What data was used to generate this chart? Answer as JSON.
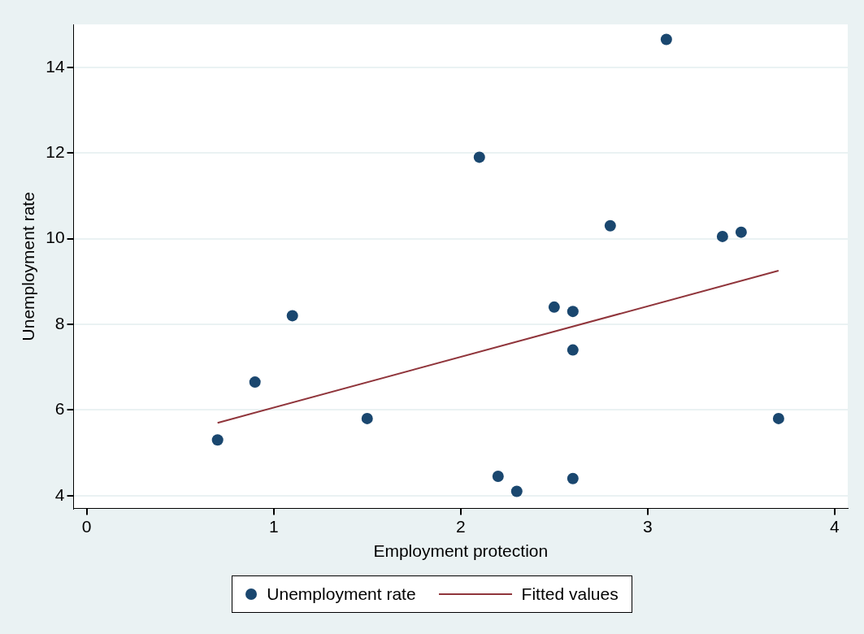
{
  "chart_data": {
    "type": "scatter",
    "xlabel": "Employment protection",
    "ylabel": "Unemployment rate",
    "xlim": [
      -0.07,
      4.07
    ],
    "ylim": [
      3.7,
      15
    ],
    "xticks": [
      0,
      1,
      2,
      3,
      4
    ],
    "yticks": [
      4,
      6,
      8,
      10,
      12,
      14
    ],
    "grid": "y",
    "legend": "bottom",
    "series": [
      {
        "name": "Unemployment rate",
        "color": "#1a476f",
        "marker": "circle",
        "x": [
          0.7,
          0.9,
          1.1,
          1.5,
          2.1,
          2.2,
          2.3,
          2.5,
          2.6,
          2.6,
          2.6,
          2.8,
          3.1,
          3.4,
          3.5,
          3.7
        ],
        "values": [
          5.3,
          6.65,
          8.2,
          5.8,
          11.9,
          4.45,
          4.1,
          8.4,
          8.3,
          7.4,
          4.4,
          10.3,
          14.65,
          10.05,
          10.15,
          5.8
        ]
      },
      {
        "name": "Fitted values",
        "type": "line",
        "color": "#90353b",
        "marker": "none",
        "line_style": "solid",
        "x": [
          0.7,
          3.7
        ],
        "values": [
          5.7,
          9.25
        ]
      }
    ]
  }
}
